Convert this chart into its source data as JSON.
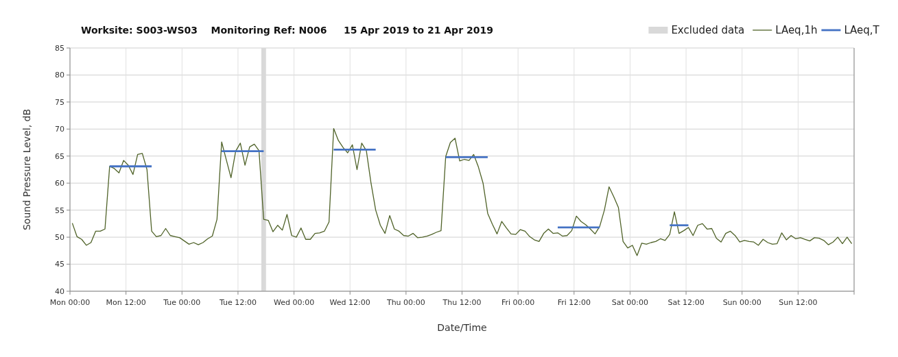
{
  "chart_data": {
    "type": "line",
    "title": "Worksite: S003-WS03    Monitoring Ref: N006     15 Apr 2019 to 21 Apr 2019",
    "xlabel": "Date/Time",
    "ylabel": "Sound Pressure Level, dB",
    "xlim": [
      "2019-04-15T00:00",
      "2019-04-22T00:00"
    ],
    "xticks": [
      {
        "value": "2019-04-15T00:00",
        "label": "Mon 00:00"
      },
      {
        "value": "2019-04-15T12:00",
        "label": "Mon 12:00"
      },
      {
        "value": "2019-04-16T00:00",
        "label": "Tue 00:00"
      },
      {
        "value": "2019-04-16T12:00",
        "label": "Tue 12:00"
      },
      {
        "value": "2019-04-17T00:00",
        "label": "Wed 00:00"
      },
      {
        "value": "2019-04-17T12:00",
        "label": "Wed 12:00"
      },
      {
        "value": "2019-04-18T00:00",
        "label": "Thu 00:00"
      },
      {
        "value": "2019-04-18T12:00",
        "label": "Thu 12:00"
      },
      {
        "value": "2019-04-19T00:00",
        "label": "Fri 00:00"
      },
      {
        "value": "2019-04-19T12:00",
        "label": "Fri 12:00"
      },
      {
        "value": "2019-04-20T00:00",
        "label": "Sat 00:00"
      },
      {
        "value": "2019-04-20T12:00",
        "label": "Sat 12:00"
      },
      {
        "value": "2019-04-21T00:00",
        "label": "Sun 00:00"
      },
      {
        "value": "2019-04-21T12:00",
        "label": "Sun 12:00"
      },
      {
        "value": "2019-04-22T00:00",
        "label": null
      }
    ],
    "ylim": [
      40,
      85
    ],
    "yticks": [
      40,
      45,
      50,
      55,
      60,
      65,
      70,
      75,
      80,
      85
    ],
    "grid": true,
    "legend": "top right",
    "bands": [
      {
        "axis": "x",
        "from": "2019-04-16T17:00",
        "to": "2019-04-16T18:00",
        "label": "Excluded data",
        "color": "#d9d9d9"
      }
    ],
    "series": [
      {
        "name": "LAeq,1h",
        "color": "#4f6228",
        "x": [
          "2019-04-15T00:30",
          "2019-04-15T01:30",
          "2019-04-15T02:30",
          "2019-04-15T03:30",
          "2019-04-15T04:30",
          "2019-04-15T05:30",
          "2019-04-15T06:30",
          "2019-04-15T07:30",
          "2019-04-15T08:30",
          "2019-04-15T09:30",
          "2019-04-15T10:30",
          "2019-04-15T11:30",
          "2019-04-15T12:30",
          "2019-04-15T13:30",
          "2019-04-15T14:30",
          "2019-04-15T15:30",
          "2019-04-15T16:30",
          "2019-04-15T17:30",
          "2019-04-15T18:30",
          "2019-04-15T19:30",
          "2019-04-15T20:30",
          "2019-04-15T21:30",
          "2019-04-15T22:30",
          "2019-04-15T23:30",
          "2019-04-16T00:30",
          "2019-04-16T01:30",
          "2019-04-16T02:30",
          "2019-04-16T03:30",
          "2019-04-16T04:30",
          "2019-04-16T05:30",
          "2019-04-16T06:30",
          "2019-04-16T07:30",
          "2019-04-16T08:30",
          "2019-04-16T09:30",
          "2019-04-16T10:30",
          "2019-04-16T11:30",
          "2019-04-16T12:30",
          "2019-04-16T13:30",
          "2019-04-16T14:30",
          "2019-04-16T15:30",
          "2019-04-16T16:30",
          "2019-04-16T17:30",
          "2019-04-16T18:30",
          "2019-04-16T19:30",
          "2019-04-16T20:30",
          "2019-04-16T21:30",
          "2019-04-16T22:30",
          "2019-04-16T23:30",
          "2019-04-17T00:30",
          "2019-04-17T01:30",
          "2019-04-17T02:30",
          "2019-04-17T03:30",
          "2019-04-17T04:30",
          "2019-04-17T05:30",
          "2019-04-17T06:30",
          "2019-04-17T07:30",
          "2019-04-17T08:30",
          "2019-04-17T09:30",
          "2019-04-17T10:30",
          "2019-04-17T11:30",
          "2019-04-17T12:30",
          "2019-04-17T13:30",
          "2019-04-17T14:30",
          "2019-04-17T15:30",
          "2019-04-17T16:30",
          "2019-04-17T17:30",
          "2019-04-17T18:30",
          "2019-04-17T19:30",
          "2019-04-17T20:30",
          "2019-04-17T21:30",
          "2019-04-17T22:30",
          "2019-04-17T23:30",
          "2019-04-18T00:30",
          "2019-04-18T01:30",
          "2019-04-18T02:30",
          "2019-04-18T03:30",
          "2019-04-18T04:30",
          "2019-04-18T05:30",
          "2019-04-18T06:30",
          "2019-04-18T07:30",
          "2019-04-18T08:30",
          "2019-04-18T09:30",
          "2019-04-18T10:30",
          "2019-04-18T11:30",
          "2019-04-18T12:30",
          "2019-04-18T13:30",
          "2019-04-18T14:30",
          "2019-04-18T15:30",
          "2019-04-18T16:30",
          "2019-04-18T17:30",
          "2019-04-18T18:30",
          "2019-04-18T19:30",
          "2019-04-18T20:30",
          "2019-04-18T21:30",
          "2019-04-18T22:30",
          "2019-04-18T23:30",
          "2019-04-19T00:30",
          "2019-04-19T01:30",
          "2019-04-19T02:30",
          "2019-04-19T03:30",
          "2019-04-19T04:30",
          "2019-04-19T05:30",
          "2019-04-19T06:30",
          "2019-04-19T07:30",
          "2019-04-19T08:30",
          "2019-04-19T09:30",
          "2019-04-19T10:30",
          "2019-04-19T11:30",
          "2019-04-19T12:30",
          "2019-04-19T13:30",
          "2019-04-19T14:30",
          "2019-04-19T15:30",
          "2019-04-19T16:30",
          "2019-04-19T17:30",
          "2019-04-19T18:30",
          "2019-04-19T19:30",
          "2019-04-19T20:30",
          "2019-04-19T21:30",
          "2019-04-19T22:30",
          "2019-04-19T23:30",
          "2019-04-20T00:30",
          "2019-04-20T01:30",
          "2019-04-20T02:30",
          "2019-04-20T03:30",
          "2019-04-20T04:30",
          "2019-04-20T05:30",
          "2019-04-20T06:30",
          "2019-04-20T07:30",
          "2019-04-20T08:30",
          "2019-04-20T09:30",
          "2019-04-20T10:30",
          "2019-04-20T11:30",
          "2019-04-20T12:30",
          "2019-04-20T13:30",
          "2019-04-20T14:30",
          "2019-04-20T15:30",
          "2019-04-20T16:30",
          "2019-04-20T17:30",
          "2019-04-20T18:30",
          "2019-04-20T19:30",
          "2019-04-20T20:30",
          "2019-04-20T21:30",
          "2019-04-20T22:30",
          "2019-04-20T23:30",
          "2019-04-21T00:30",
          "2019-04-21T01:30",
          "2019-04-21T02:30",
          "2019-04-21T03:30",
          "2019-04-21T04:30",
          "2019-04-21T05:30",
          "2019-04-21T06:30",
          "2019-04-21T07:30",
          "2019-04-21T08:30",
          "2019-04-21T09:30",
          "2019-04-21T10:30",
          "2019-04-21T11:30",
          "2019-04-21T12:30",
          "2019-04-21T13:30",
          "2019-04-21T14:30",
          "2019-04-21T15:30",
          "2019-04-21T16:30",
          "2019-04-21T17:30",
          "2019-04-21T18:30",
          "2019-04-21T19:30",
          "2019-04-21T20:30",
          "2019-04-21T21:30",
          "2019-04-21T22:30",
          "2019-04-21T23:30"
        ],
        "values": [
          52.6,
          50.1,
          49.6,
          48.5,
          49.0,
          51.1,
          51.1,
          51.5,
          63.1,
          62.7,
          61.9,
          64.2,
          63.3,
          61.6,
          65.3,
          65.5,
          62.5,
          51.1,
          50.1,
          50.3,
          51.6,
          50.3,
          50.1,
          49.9,
          49.3,
          48.7,
          49.0,
          48.6,
          49.0,
          49.7,
          50.2,
          53.3,
          67.6,
          64.3,
          61.0,
          65.9,
          67.4,
          63.3,
          66.7,
          67.2,
          66.0,
          53.3,
          53.1,
          51.0,
          52.2,
          51.3,
          54.2,
          50.3,
          50.0,
          51.7,
          49.6,
          49.6,
          50.7,
          50.8,
          51.1,
          52.8,
          70.1,
          67.9,
          66.6,
          65.6,
          67.1,
          62.5,
          67.4,
          66.0,
          60.0,
          55.0,
          52.2,
          50.7,
          54.0,
          51.5,
          51.1,
          50.3,
          50.2,
          50.7,
          49.9,
          50.0,
          50.2,
          50.5,
          50.9,
          51.2,
          64.9,
          67.5,
          68.3,
          64.1,
          64.4,
          64.2,
          65.3,
          63.0,
          60.0,
          54.4,
          52.4,
          50.6,
          52.9,
          51.7,
          50.6,
          50.5,
          51.4,
          51.1,
          50.1,
          49.5,
          49.2,
          50.7,
          51.5,
          50.7,
          50.8,
          50.2,
          50.3,
          51.2,
          53.9,
          52.9,
          52.3,
          51.5,
          50.6,
          52.0,
          55.0,
          59.3,
          57.5,
          55.5,
          49.2,
          48.0,
          48.5,
          46.6,
          48.9,
          48.7,
          49.0,
          49.2,
          49.7,
          49.4,
          50.5,
          54.7,
          50.7,
          51.2,
          51.8,
          50.3,
          52.2,
          52.5,
          51.5,
          51.6,
          49.8,
          49.1,
          50.7,
          51.1,
          50.3,
          49.1,
          49.4,
          49.2,
          49.1,
          48.5,
          49.6,
          49.0,
          48.7,
          48.8,
          50.8,
          49.5,
          50.3,
          49.7,
          49.9,
          49.6,
          49.3,
          49.9,
          49.8,
          49.4,
          48.6,
          49.1,
          50.0,
          48.8,
          50.0,
          48.8
        ]
      },
      {
        "name": "LAeq,T",
        "color": "#4472c4",
        "x": [
          "2019-04-15T08:30",
          "2019-04-15T17:30"
        ],
        "values": [
          63.1,
          63.1
        ]
      },
      {
        "color": "#4472c4",
        "x": [
          "2019-04-16T08:30",
          "2019-04-16T17:30"
        ],
        "values": [
          65.9,
          65.9
        ]
      },
      {
        "color": "#4472c4",
        "x": [
          "2019-04-17T08:30",
          "2019-04-17T17:30"
        ],
        "values": [
          66.2,
          66.2
        ]
      },
      {
        "color": "#4472c4",
        "x": [
          "2019-04-18T08:30",
          "2019-04-18T17:30"
        ],
        "values": [
          64.8,
          64.8
        ]
      },
      {
        "color": "#4472c4",
        "x": [
          "2019-04-19T08:30",
          "2019-04-19T17:30"
        ],
        "values": [
          51.8,
          51.8
        ]
      },
      {
        "color": "#4472c4",
        "x": [
          "2019-04-20T08:30",
          "2019-04-20T12:30"
        ],
        "values": [
          52.2,
          52.2
        ]
      }
    ]
  }
}
